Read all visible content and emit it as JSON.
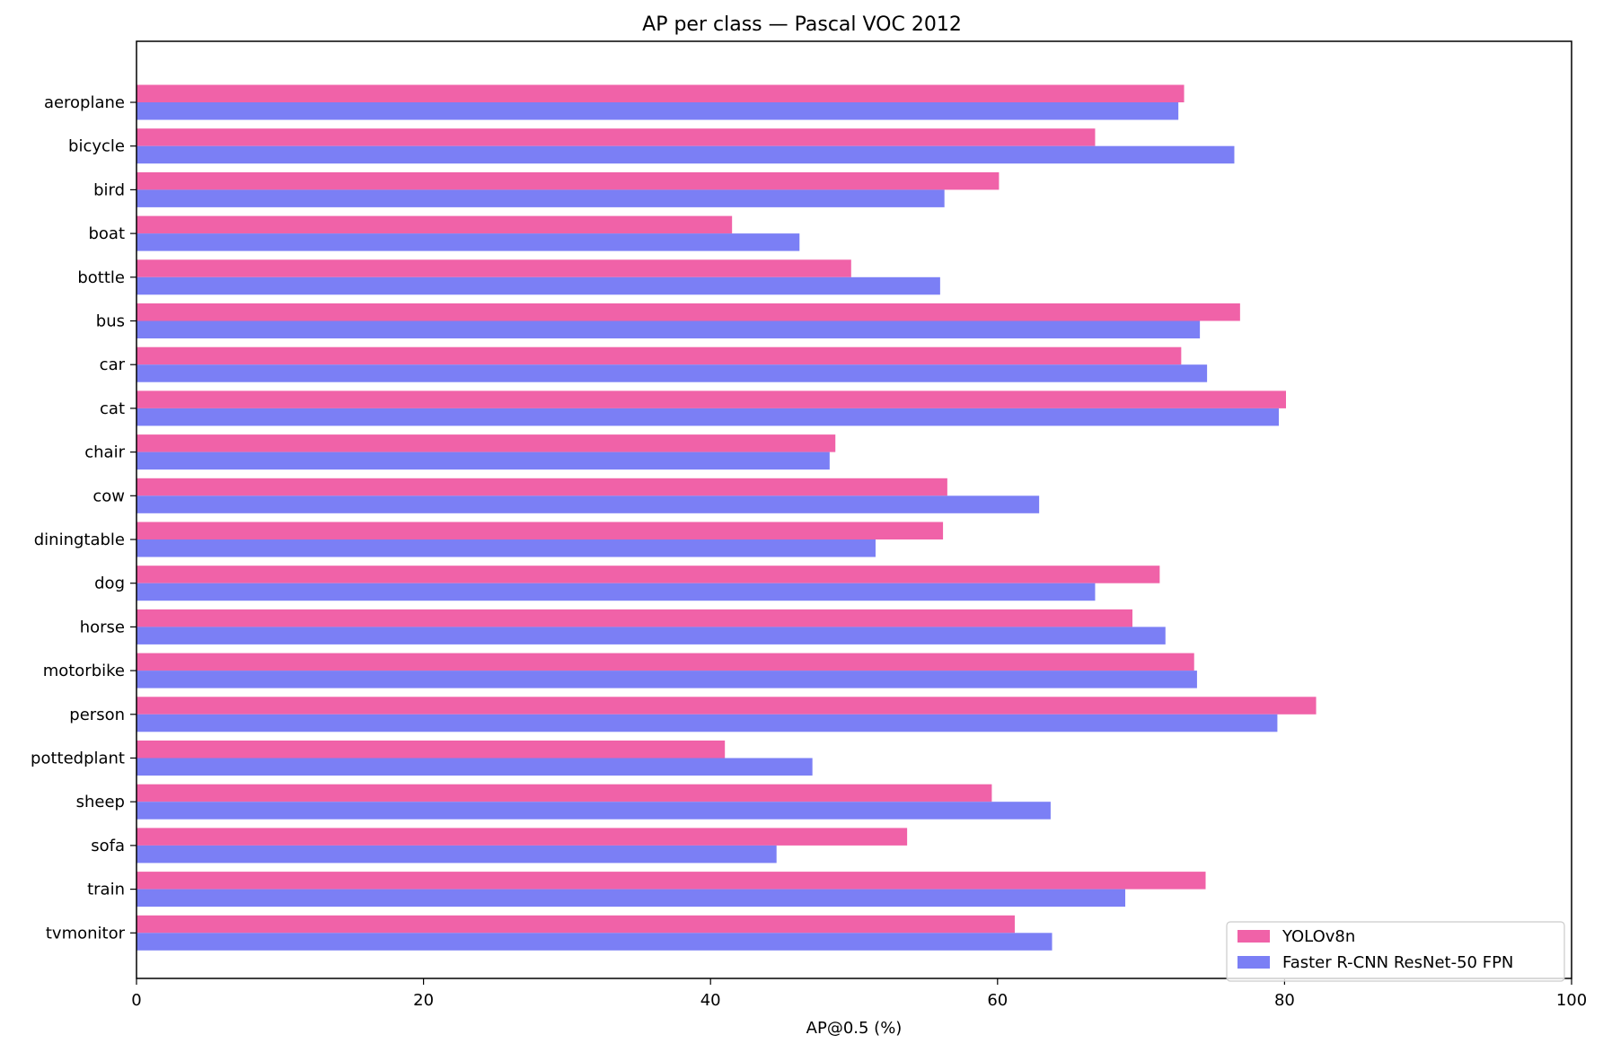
{
  "chart_data": {
    "type": "bar",
    "orientation": "horizontal",
    "title": "AP per class — Pascal VOC 2012",
    "xlabel": "AP@0.5 (%)",
    "ylabel": "",
    "xlim": [
      0,
      100
    ],
    "xticks": [
      0,
      20,
      40,
      60,
      80,
      100
    ],
    "grid": false,
    "legend_position": "bottom-right",
    "categories": [
      "aeroplane",
      "bicycle",
      "bird",
      "boat",
      "bottle",
      "bus",
      "car",
      "cat",
      "chair",
      "cow",
      "diningtable",
      "dog",
      "horse",
      "motorbike",
      "person",
      "pottedplant",
      "sheep",
      "sofa",
      "train",
      "tvmonitor"
    ],
    "series": [
      {
        "name": "YOLOv8n",
        "color": "#f062a8",
        "values": [
          73.0,
          66.8,
          60.1,
          41.5,
          49.8,
          76.9,
          72.8,
          80.1,
          48.7,
          56.5,
          56.2,
          71.3,
          69.4,
          73.7,
          82.2,
          41.0,
          59.6,
          53.7,
          74.5,
          61.2
        ]
      },
      {
        "name": "Faster R-CNN ResNet-50 FPN",
        "color": "#7b7ff5",
        "values": [
          72.6,
          76.5,
          56.3,
          46.2,
          56.0,
          74.1,
          74.6,
          79.6,
          48.3,
          62.9,
          51.5,
          66.8,
          71.7,
          73.9,
          79.5,
          47.1,
          63.7,
          44.6,
          68.9,
          63.8
        ]
      }
    ]
  }
}
